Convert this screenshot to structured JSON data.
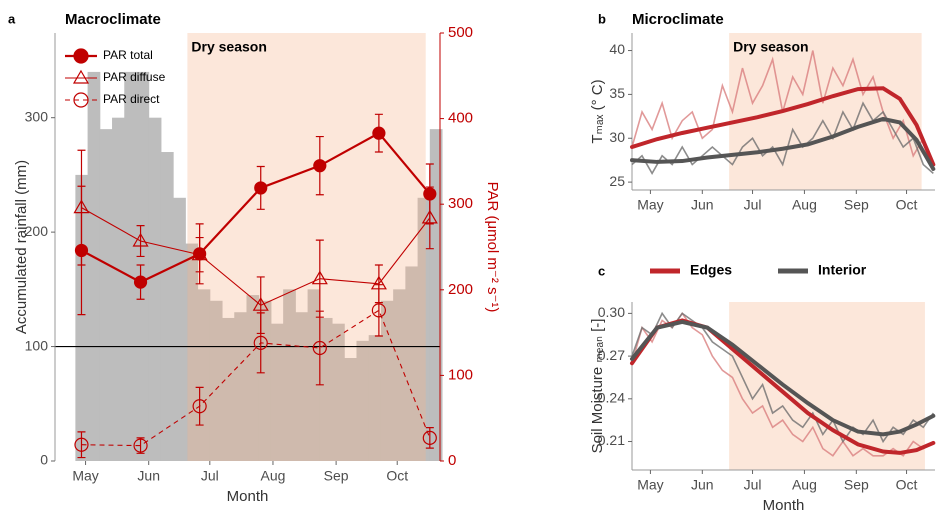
{
  "chart_data": [
    {
      "type": "combo",
      "panel_label": "a",
      "title": "Macroclimate",
      "annotation": "Dry season",
      "dry_season": [
        171,
        288
      ],
      "x_label": "Month",
      "y_label": "Accumulated rainfall (mm)",
      "y2_label": "PAR (μmol m⁻² s⁻¹)",
      "xlim": [
        106,
        295
      ],
      "xticks": [
        {
          "value": 121,
          "label": "May"
        },
        {
          "value": 152,
          "label": "Jun"
        },
        {
          "value": 182,
          "label": "Jul"
        },
        {
          "value": 213,
          "label": "Aug"
        },
        {
          "value": 244,
          "label": "Sep"
        },
        {
          "value": 274,
          "label": "Oct"
        }
      ],
      "ylim": [
        0,
        374
      ],
      "yticks": [
        0,
        100,
        200,
        300
      ],
      "y2lim": [
        0,
        500
      ],
      "y2ticks": [
        0,
        100,
        200,
        300,
        400,
        500
      ],
      "reference_line": 100,
      "legend": "top-left",
      "rainfall": {
        "color": "#bdbdbd",
        "bins": [
          116,
          122,
          128,
          134,
          140,
          146,
          152,
          158,
          164,
          170,
          176,
          182,
          188,
          194,
          200,
          206,
          212,
          218,
          224,
          230,
          236,
          242,
          248,
          254,
          260,
          266,
          272,
          278,
          284,
          290,
          296
        ],
        "counts": [
          250,
          340,
          290,
          300,
          340,
          340,
          300,
          270,
          230,
          190,
          150,
          140,
          125,
          130,
          145,
          140,
          120,
          150,
          130,
          150,
          125,
          120,
          90,
          105,
          110,
          140,
          150,
          170,
          230,
          290
        ]
      },
      "x": [
        119,
        148,
        177,
        207,
        236,
        265,
        290
      ],
      "series": [
        {
          "name": "PAR total",
          "color": "#c00000",
          "marker": "circle-filled",
          "dash": "solid",
          "axis": "y2",
          "values": [
            246,
            209,
            242,
            319,
            345,
            383,
            312
          ],
          "errors": [
            75,
            20,
            35,
            25,
            34,
            22,
            35
          ]
        },
        {
          "name": "PAR diffuse",
          "color": "#c00000",
          "marker": "triangle-open",
          "dash": "thin",
          "axis": "y2",
          "values": [
            296,
            257,
            241,
            182,
            213,
            207,
            284
          ],
          "errors": [
            67,
            18,
            20,
            33,
            45,
            22,
            36
          ]
        },
        {
          "name": "PAR direct",
          "color": "#c00000",
          "marker": "circle-open",
          "dash": "dashed",
          "axis": "y2",
          "values": [
            19,
            18,
            64,
            138,
            132,
            176,
            27
          ],
          "errors": [
            15,
            9,
            22,
            35,
            43,
            30,
            12
          ]
        }
      ]
    },
    {
      "type": "line",
      "panel_label": "b",
      "title": "Microclimate",
      "annotation": "Dry season",
      "dry_season": [
        168,
        283
      ],
      "y_label": "Tₘₐₓ (° C)",
      "xlim": [
        110,
        291
      ],
      "xticks": [
        {
          "value": 121,
          "label": "May"
        },
        {
          "value": 152,
          "label": "Jun"
        },
        {
          "value": 182,
          "label": "Jul"
        },
        {
          "value": 213,
          "label": "Aug"
        },
        {
          "value": 244,
          "label": "Sep"
        },
        {
          "value": 274,
          "label": "Oct"
        }
      ],
      "ylim": [
        24.1,
        42
      ],
      "yticks": [
        25,
        30,
        35,
        40
      ],
      "x": [
        110,
        116,
        122,
        128,
        134,
        140,
        146,
        152,
        158,
        164,
        170,
        176,
        182,
        188,
        194,
        200,
        206,
        212,
        218,
        224,
        230,
        236,
        242,
        248,
        254,
        260,
        266,
        272,
        278,
        284,
        290
      ],
      "smooth_x": [
        110,
        125,
        140,
        155,
        170,
        185,
        200,
        215,
        230,
        245,
        260,
        270,
        280,
        290
      ],
      "series": [
        {
          "color": "#c0262b",
          "raw_color": "#d98080",
          "values": [
            29,
            33,
            31,
            34,
            30,
            32,
            33,
            30,
            31,
            36,
            33,
            38,
            34,
            36,
            39,
            33,
            37,
            35,
            40,
            34,
            38,
            36,
            39,
            35,
            37,
            33,
            30,
            32,
            28,
            30,
            27
          ],
          "smooth_values": [
            29,
            29.9,
            30.6,
            31.2,
            31.8,
            32.4,
            33.1,
            33.9,
            34.8,
            35.6,
            35.7,
            34.5,
            31.5,
            27
          ]
        },
        {
          "color": "#555555",
          "raw_color": "#6f6f6f",
          "values": [
            27,
            28,
            26,
            28,
            27,
            29,
            27,
            28,
            29,
            28,
            27,
            29,
            30,
            28,
            29,
            27,
            31,
            29,
            30,
            32,
            30,
            33,
            31,
            34,
            32,
            33,
            31,
            29,
            30,
            27,
            26
          ],
          "smooth_values": [
            27.5,
            27.3,
            27.4,
            27.8,
            28.1,
            28.4,
            28.8,
            29.3,
            30.2,
            31.3,
            32.2,
            31.8,
            29.8,
            26.5
          ]
        }
      ]
    },
    {
      "type": "line",
      "panel_label": "c",
      "x_label": "Month",
      "dry_season": [
        168,
        285
      ],
      "y_label": "Soil Moisture ₘₑₐₙ [-]",
      "xlim": [
        110,
        291
      ],
      "xticks": [
        {
          "value": 121,
          "label": "May"
        },
        {
          "value": 152,
          "label": "Jun"
        },
        {
          "value": 182,
          "label": "Jul"
        },
        {
          "value": 213,
          "label": "Aug"
        },
        {
          "value": 244,
          "label": "Sep"
        },
        {
          "value": 274,
          "label": "Oct"
        }
      ],
      "ylim": [
        0.19,
        0.308
      ],
      "yticks": [
        {
          "value": 0.3,
          "label": "0.30"
        },
        0.27,
        0.24,
        0.21
      ],
      "x": [
        110,
        116,
        122,
        128,
        134,
        140,
        146,
        152,
        158,
        164,
        170,
        176,
        182,
        188,
        194,
        200,
        206,
        212,
        218,
        224,
        230,
        236,
        242,
        248,
        254,
        260,
        266,
        272,
        278,
        284,
        290
      ],
      "smooth_x": [
        110,
        125,
        140,
        155,
        170,
        185,
        200,
        215,
        230,
        245,
        260,
        270,
        280,
        290
      ],
      "series": [
        {
          "name": "Edges",
          "color": "#c0262b",
          "raw_color": "#d98080",
          "values": [
            0.265,
            0.29,
            0.28,
            0.295,
            0.29,
            0.3,
            0.29,
            0.285,
            0.27,
            0.26,
            0.255,
            0.24,
            0.23,
            0.235,
            0.22,
            0.225,
            0.215,
            0.21,
            0.22,
            0.205,
            0.2,
            0.21,
            0.2,
            0.205,
            0.2,
            0.2,
            0.205,
            0.2,
            0.21,
            0.205,
            0.21
          ],
          "smooth_values": [
            0.265,
            0.29,
            0.295,
            0.29,
            0.275,
            0.26,
            0.245,
            0.23,
            0.218,
            0.208,
            0.203,
            0.202,
            0.204,
            0.209
          ]
        },
        {
          "name": "Interior",
          "color": "#555555",
          "raw_color": "#6f6f6f",
          "values": [
            0.27,
            0.29,
            0.285,
            0.3,
            0.29,
            0.3,
            0.295,
            0.29,
            0.28,
            0.275,
            0.27,
            0.255,
            0.24,
            0.25,
            0.23,
            0.235,
            0.225,
            0.22,
            0.23,
            0.215,
            0.225,
            0.21,
            0.22,
            0.215,
            0.225,
            0.21,
            0.22,
            0.215,
            0.225,
            0.22,
            0.23
          ],
          "smooth_values": [
            0.268,
            0.29,
            0.294,
            0.29,
            0.278,
            0.264,
            0.25,
            0.237,
            0.225,
            0.217,
            0.215,
            0.217,
            0.222,
            0.228
          ]
        }
      ]
    }
  ]
}
